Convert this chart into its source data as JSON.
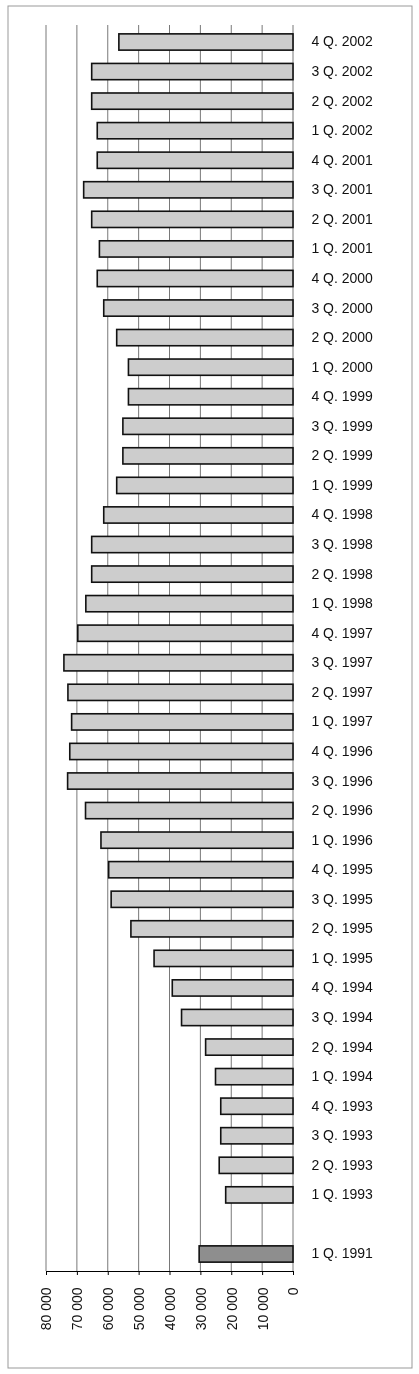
{
  "chart_data": {
    "type": "bar",
    "orientation": "horizontal",
    "categories": [
      "4 Q. 2002",
      "3 Q. 2002",
      "2 Q. 2002",
      "1 Q. 2002",
      "4 Q. 2001",
      "3 Q. 2001",
      "2 Q. 2001",
      "1 Q. 2001",
      "4 Q. 2000",
      "3 Q. 2000",
      "2 Q. 2000",
      "1 Q. 2000",
      "4 Q. 1999",
      "3 Q. 1999",
      "2 Q. 1999",
      "1 Q. 1999",
      "4 Q. 1998",
      "3 Q. 1998",
      "2 Q. 1998",
      "1 Q. 1998",
      "4 Q. 1997",
      "3 Q. 1997",
      "2 Q. 1997",
      "1 Q. 1997",
      "4 Q. 1996",
      "3 Q. 1996",
      "2 Q. 1996",
      "1 Q. 1996",
      "4 Q. 1995",
      "3 Q. 1995",
      "2 Q. 1995",
      "1 Q. 1995",
      "4 Q. 1994",
      "3 Q. 1994",
      "2 Q. 1994",
      "1 Q. 1994",
      "4 Q. 1993",
      "3 Q. 1993",
      "2 Q. 1993",
      "1 Q. 1993",
      null,
      "1 Q. 1991"
    ],
    "values": [
      56400,
      65200,
      65200,
      63400,
      63400,
      67800,
      65200,
      62700,
      63400,
      61300,
      57100,
      53300,
      53300,
      55100,
      55100,
      57100,
      61300,
      65200,
      65200,
      67100,
      69700,
      74200,
      72900,
      71700,
      72300,
      73000,
      67200,
      62200,
      59700,
      58900,
      52500,
      45000,
      39100,
      36100,
      28300,
      25100,
      23400,
      23400,
      23900,
      21800,
      null,
      30400
    ],
    "colors": [
      "#cdcdcd",
      "#cdcdcd",
      "#cdcdcd",
      "#cdcdcd",
      "#cdcdcd",
      "#cdcdcd",
      "#cdcdcd",
      "#cdcdcd",
      "#cdcdcd",
      "#cdcdcd",
      "#cdcdcd",
      "#cdcdcd",
      "#cdcdcd",
      "#cdcdcd",
      "#cdcdcd",
      "#cdcdcd",
      "#cdcdcd",
      "#cdcdcd",
      "#cdcdcd",
      "#cdcdcd",
      "#cdcdcd",
      "#cdcdcd",
      "#cdcdcd",
      "#cdcdcd",
      "#cdcdcd",
      "#cdcdcd",
      "#cdcdcd",
      "#cdcdcd",
      "#cdcdcd",
      "#cdcdcd",
      "#cdcdcd",
      "#cdcdcd",
      "#cdcdcd",
      "#cdcdcd",
      "#cdcdcd",
      "#cdcdcd",
      "#cdcdcd",
      "#cdcdcd",
      "#cdcdcd",
      "#cdcdcd",
      null,
      "#8e8e8e"
    ],
    "xlim": [
      80000,
      0
    ],
    "xticks": [
      {
        "value": 80000,
        "label": "80 000"
      },
      {
        "value": 70000,
        "label": "70 000"
      },
      {
        "value": 60000,
        "label": "60 000"
      },
      {
        "value": 50000,
        "label": "50 000"
      },
      {
        "value": 40000,
        "label": "40 000"
      },
      {
        "value": 30000,
        "label": "30 000"
      },
      {
        "value": 20000,
        "label": "20 000"
      },
      {
        "value": 10000,
        "label": "10 000"
      },
      0
    ],
    "grid": "x"
  }
}
